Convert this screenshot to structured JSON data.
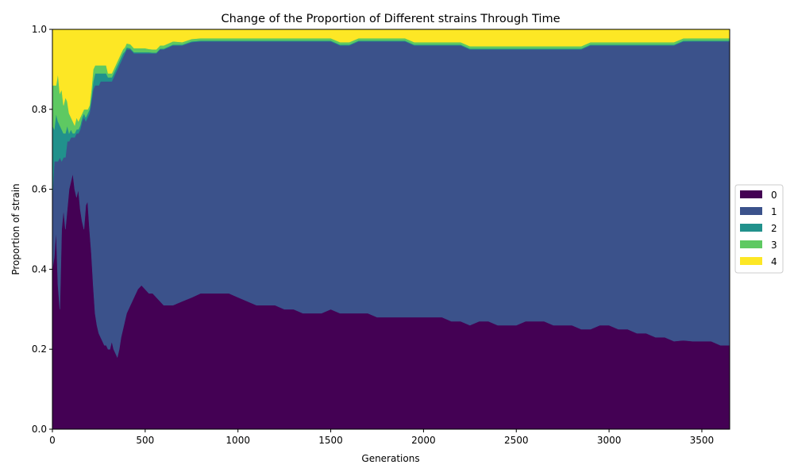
{
  "chart_data": {
    "type": "area",
    "stacked": true,
    "normalized": true,
    "title": "Change of the Proportion of Different strains Through Time",
    "xlabel": "Generations",
    "ylabel": "Proportion of strain",
    "xlim": [
      0,
      3650
    ],
    "ylim": [
      0,
      1
    ],
    "xticks": [
      0,
      500,
      1000,
      1500,
      2000,
      2500,
      3000,
      3500
    ],
    "yticks": [
      0.0,
      0.2,
      0.4,
      0.6,
      0.8,
      1.0
    ],
    "xtick_labels": [
      "0",
      "500",
      "1000",
      "1500",
      "2000",
      "2500",
      "3000",
      "3500"
    ],
    "ytick_labels": [
      "0.0",
      "0.2",
      "0.4",
      "0.6",
      "0.8",
      "1.0"
    ],
    "legend_position": "center-right-outside",
    "x": [
      0,
      10,
      20,
      30,
      40,
      50,
      60,
      70,
      80,
      90,
      100,
      110,
      120,
      130,
      140,
      150,
      160,
      170,
      180,
      190,
      200,
      210,
      220,
      230,
      240,
      250,
      260,
      270,
      280,
      290,
      300,
      310,
      320,
      330,
      340,
      350,
      360,
      370,
      380,
      390,
      400,
      420,
      440,
      460,
      480,
      500,
      520,
      540,
      560,
      580,
      600,
      650,
      700,
      750,
      800,
      850,
      900,
      950,
      1000,
      1050,
      1100,
      1150,
      1200,
      1250,
      1300,
      1350,
      1400,
      1450,
      1500,
      1550,
      1600,
      1650,
      1700,
      1750,
      1800,
      1850,
      1900,
      1950,
      2000,
      2050,
      2100,
      2150,
      2200,
      2250,
      2300,
      2350,
      2400,
      2450,
      2500,
      2550,
      2600,
      2650,
      2700,
      2750,
      2800,
      2850,
      2900,
      2950,
      3000,
      3050,
      3100,
      3150,
      3200,
      3250,
      3300,
      3350,
      3400,
      3450,
      3500,
      3550,
      3600,
      3650
    ],
    "series": [
      {
        "name": "0",
        "color": "#440154",
        "values": [
          0.4,
          0.43,
          0.5,
          0.36,
          0.3,
          0.5,
          0.55,
          0.5,
          0.55,
          0.6,
          0.62,
          0.64,
          0.6,
          0.58,
          0.6,
          0.55,
          0.52,
          0.5,
          0.56,
          0.57,
          0.5,
          0.44,
          0.36,
          0.29,
          0.26,
          0.24,
          0.23,
          0.22,
          0.21,
          0.21,
          0.2,
          0.2,
          0.22,
          0.2,
          0.19,
          0.18,
          0.2,
          0.23,
          0.25,
          0.27,
          0.29,
          0.31,
          0.33,
          0.35,
          0.36,
          0.35,
          0.34,
          0.34,
          0.33,
          0.32,
          0.31,
          0.31,
          0.32,
          0.33,
          0.34,
          0.34,
          0.34,
          0.34,
          0.33,
          0.32,
          0.31,
          0.31,
          0.31,
          0.3,
          0.3,
          0.29,
          0.29,
          0.29,
          0.3,
          0.29,
          0.29,
          0.29,
          0.29,
          0.28,
          0.28,
          0.28,
          0.28,
          0.28,
          0.28,
          0.28,
          0.28,
          0.27,
          0.27,
          0.26,
          0.27,
          0.27,
          0.26,
          0.26,
          0.26,
          0.27,
          0.27,
          0.27,
          0.26,
          0.26,
          0.26,
          0.25,
          0.25,
          0.26,
          0.26,
          0.25,
          0.25,
          0.24,
          0.24,
          0.23,
          0.23,
          0.22,
          0.22,
          0.22,
          0.22,
          0.22,
          0.21,
          0.21
        ]
      },
      {
        "name": "1",
        "color": "#3b528b",
        "values": [
          0.18,
          0.24,
          0.17,
          0.31,
          0.38,
          0.17,
          0.13,
          0.18,
          0.17,
          0.12,
          0.11,
          0.09,
          0.13,
          0.16,
          0.14,
          0.2,
          0.25,
          0.28,
          0.21,
          0.21,
          0.29,
          0.38,
          0.49,
          0.57,
          0.6,
          0.62,
          0.64,
          0.65,
          0.66,
          0.66,
          0.67,
          0.67,
          0.65,
          0.68,
          0.7,
          0.72,
          0.71,
          0.69,
          0.68,
          0.67,
          0.66,
          0.64,
          0.61,
          0.59,
          0.58,
          0.59,
          0.6,
          0.6,
          0.61,
          0.63,
          0.64,
          0.65,
          0.64,
          0.64,
          0.63,
          0.63,
          0.63,
          0.63,
          0.64,
          0.65,
          0.66,
          0.66,
          0.66,
          0.67,
          0.67,
          0.68,
          0.68,
          0.68,
          0.67,
          0.67,
          0.67,
          0.68,
          0.68,
          0.69,
          0.69,
          0.69,
          0.69,
          0.68,
          0.68,
          0.68,
          0.68,
          0.69,
          0.69,
          0.69,
          0.68,
          0.68,
          0.69,
          0.69,
          0.69,
          0.68,
          0.68,
          0.68,
          0.69,
          0.69,
          0.69,
          0.7,
          0.71,
          0.7,
          0.7,
          0.71,
          0.71,
          0.72,
          0.72,
          0.73,
          0.73,
          0.74,
          0.74,
          0.75,
          0.75,
          0.75,
          0.76,
          0.76
        ]
      },
      {
        "name": "2",
        "color": "#21918c",
        "values": [
          0.18,
          0.08,
          0.12,
          0.1,
          0.08,
          0.08,
          0.06,
          0.06,
          0.04,
          0.02,
          0.02,
          0.01,
          0.01,
          0.01,
          0.01,
          0.01,
          0.01,
          0.01,
          0.01,
          0.01,
          0.01,
          0.01,
          0.02,
          0.03,
          0.03,
          0.03,
          0.02,
          0.02,
          0.02,
          0.02,
          0.01,
          0.01,
          0.01,
          0.01,
          0.01,
          0.01,
          0.01,
          0.01,
          0.01,
          0.005,
          0.005,
          0.003,
          0.003,
          0.003,
          0.003,
          0.003,
          0.003,
          0.002,
          0.002,
          0.002,
          0.002,
          0.002,
          0.002,
          0.002,
          0.002,
          0.002,
          0.002,
          0.002,
          0.002,
          0.002,
          0.002,
          0.002,
          0.002,
          0.002,
          0.002,
          0.002,
          0.002,
          0.002,
          0.002,
          0.002,
          0.002,
          0.002,
          0.002,
          0.002,
          0.002,
          0.002,
          0.002,
          0.002,
          0.002,
          0.002,
          0.002,
          0.002,
          0.002,
          0.002,
          0.002,
          0.002,
          0.002,
          0.002,
          0.002,
          0.002,
          0.002,
          0.002,
          0.002,
          0.002,
          0.002,
          0.002,
          0.002,
          0.002,
          0.002,
          0.002,
          0.002,
          0.002,
          0.002,
          0.002,
          0.002,
          0.002,
          0.002,
          0.002,
          0.002,
          0.002,
          0.002,
          0.002
        ]
      },
      {
        "name": "3",
        "color": "#5ec962",
        "values": [
          0.1,
          0.11,
          0.07,
          0.12,
          0.08,
          0.1,
          0.07,
          0.09,
          0.06,
          0.05,
          0.03,
          0.03,
          0.02,
          0.03,
          0.02,
          0.02,
          0.01,
          0.01,
          0.02,
          0.01,
          0.01,
          0.02,
          0.03,
          0.02,
          0.02,
          0.02,
          0.02,
          0.02,
          0.02,
          0.02,
          0.01,
          0.01,
          0.01,
          0.01,
          0.01,
          0.01,
          0.01,
          0.01,
          0.01,
          0.01,
          0.01,
          0.01,
          0.01,
          0.01,
          0.01,
          0.01,
          0.008,
          0.008,
          0.008,
          0.008,
          0.008,
          0.008,
          0.006,
          0.006,
          0.006,
          0.006,
          0.006,
          0.006,
          0.006,
          0.006,
          0.006,
          0.006,
          0.006,
          0.006,
          0.006,
          0.006,
          0.006,
          0.006,
          0.006,
          0.006,
          0.006,
          0.006,
          0.006,
          0.006,
          0.006,
          0.006,
          0.006,
          0.006,
          0.006,
          0.006,
          0.006,
          0.006,
          0.006,
          0.006,
          0.006,
          0.006,
          0.006,
          0.006,
          0.006,
          0.006,
          0.006,
          0.006,
          0.006,
          0.006,
          0.006,
          0.006,
          0.006,
          0.006,
          0.006,
          0.006,
          0.006,
          0.006,
          0.006,
          0.006,
          0.006,
          0.006,
          0.006,
          0.006,
          0.006,
          0.006,
          0.006,
          0.006
        ]
      },
      {
        "name": "4",
        "color": "#fde725",
        "values": [
          0.14,
          0.14,
          0.14,
          0.11,
          0.16,
          0.15,
          0.19,
          0.17,
          0.18,
          0.21,
          0.22,
          0.23,
          0.24,
          0.22,
          0.23,
          0.22,
          0.21,
          0.2,
          0.2,
          0.2,
          0.19,
          0.15,
          0.1,
          0.09,
          0.09,
          0.09,
          0.09,
          0.09,
          0.09,
          0.09,
          0.11,
          0.11,
          0.11,
          0.1,
          0.09,
          0.08,
          0.07,
          0.06,
          0.05,
          0.045,
          0.035,
          0.037,
          0.047,
          0.047,
          0.047,
          0.047,
          0.049,
          0.05,
          0.05,
          0.04,
          0.04,
          0.03,
          0.032,
          0.024,
          0.022,
          0.022,
          0.022,
          0.022,
          0.022,
          0.022,
          0.022,
          0.022,
          0.022,
          0.022,
          0.022,
          0.022,
          0.022,
          0.022,
          0.022,
          0.032,
          0.032,
          0.022,
          0.022,
          0.022,
          0.022,
          0.022,
          0.022,
          0.032,
          0.032,
          0.032,
          0.032,
          0.032,
          0.032,
          0.042,
          0.042,
          0.042,
          0.042,
          0.042,
          0.042,
          0.042,
          0.042,
          0.042,
          0.042,
          0.042,
          0.042,
          0.042,
          0.032,
          0.032,
          0.032,
          0.032,
          0.032,
          0.032,
          0.032,
          0.032,
          0.032,
          0.032,
          0.022,
          0.022,
          0.022,
          0.022,
          0.022,
          0.022
        ]
      }
    ]
  }
}
